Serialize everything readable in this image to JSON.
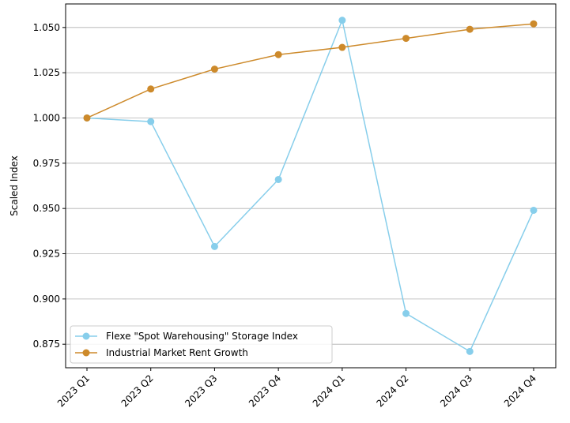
{
  "chart_data": {
    "type": "line",
    "categories": [
      "2023 Q1",
      "2023 Q2",
      "2023 Q3",
      "2023 Q4",
      "2024 Q1",
      "2024 Q2",
      "2024 Q3",
      "2024 Q4"
    ],
    "series": [
      {
        "name": "Flexe \"Spot Warehousing\" Storage Index",
        "color": "#87CEEB",
        "values": [
          1.0,
          0.998,
          0.929,
          0.966,
          1.054,
          0.892,
          0.871,
          0.949
        ]
      },
      {
        "name": "Industrial Market Rent Growth",
        "color": "#CD8A2B",
        "values": [
          1.0,
          1.016,
          1.027,
          1.035,
          1.039,
          1.044,
          1.049,
          1.052
        ]
      }
    ],
    "ylabel": "Scaled Index",
    "xlabel": "",
    "ylim": [
      0.862,
      1.063
    ],
    "yticks": [
      "0.875",
      "0.900",
      "0.925",
      "0.950",
      "0.975",
      "1.000",
      "1.025",
      "1.050"
    ],
    "grid": "horizontal",
    "legend_position": "lower-left"
  }
}
